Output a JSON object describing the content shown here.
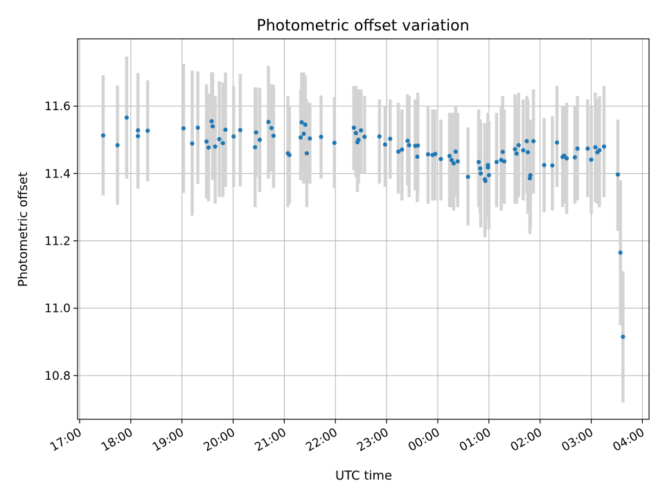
{
  "chart_data": {
    "type": "scatter",
    "title": "Photometric offset variation",
    "xlabel": "UTC time",
    "ylabel": "Photometric offset",
    "x_unit": "hours since 17:00 UTC",
    "xlim": [
      -0.04,
      11.13
    ],
    "ylim": [
      10.67,
      11.8
    ],
    "grid": true,
    "x_ticks": [
      {
        "value": 0,
        "label": "17:00"
      },
      {
        "value": 1,
        "label": "18:00"
      },
      {
        "value": 2,
        "label": "19:00"
      },
      {
        "value": 3,
        "label": "20:00"
      },
      {
        "value": 4,
        "label": "21:00"
      },
      {
        "value": 5,
        "label": "22:00"
      },
      {
        "value": 6,
        "label": "23:00"
      },
      {
        "value": 7,
        "label": "00:00"
      },
      {
        "value": 8,
        "label": "01:00"
      },
      {
        "value": 9,
        "label": "02:00"
      },
      {
        "value": 10,
        "label": "03:00"
      },
      {
        "value": 11,
        "label": "04:00"
      }
    ],
    "y_ticks": [
      {
        "value": 10.8,
        "label": "10.8"
      },
      {
        "value": 11.0,
        "label": "11.0"
      },
      {
        "value": 11.2,
        "label": "11.2"
      },
      {
        "value": 11.4,
        "label": "11.4"
      },
      {
        "value": 11.6,
        "label": "11.6"
      }
    ],
    "series": [
      {
        "name": "Photometric offset",
        "marker_color": "#1f77b4",
        "errorbar_color": "#d3d3d3",
        "points": [
          [
            0.46,
            11.513,
            11.335,
            11.692
          ],
          [
            0.74,
            11.484,
            11.307,
            11.661
          ],
          [
            0.92,
            11.566,
            11.385,
            11.747
          ],
          [
            1.14,
            11.528,
            11.358,
            11.698
          ],
          [
            1.14,
            11.511,
            11.355,
            11.668
          ],
          [
            1.33,
            11.527,
            11.377,
            11.677
          ],
          [
            2.03,
            11.534,
            11.342,
            11.726
          ],
          [
            2.2,
            11.489,
            11.275,
            11.706
          ],
          [
            2.31,
            11.536,
            11.369,
            11.703
          ],
          [
            2.48,
            11.495,
            11.325,
            11.665
          ],
          [
            2.52,
            11.477,
            11.317,
            11.637
          ],
          [
            2.58,
            11.555,
            11.476,
            11.701
          ],
          [
            2.6,
            11.54,
            11.38,
            11.7
          ],
          [
            2.65,
            11.48,
            11.31,
            11.63
          ],
          [
            2.73,
            11.502,
            11.33,
            11.674
          ],
          [
            2.8,
            11.49,
            11.33,
            11.67
          ],
          [
            2.85,
            11.53,
            11.36,
            11.7
          ],
          [
            3.01,
            11.51,
            11.36,
            11.66
          ],
          [
            3.14,
            11.529,
            11.362,
            11.696
          ],
          [
            3.43,
            11.478,
            11.3,
            11.656
          ],
          [
            3.45,
            11.522,
            11.39,
            11.655
          ],
          [
            3.52,
            11.5,
            11.345,
            11.655
          ],
          [
            3.69,
            11.553,
            11.385,
            11.72
          ],
          [
            3.75,
            11.535,
            11.405,
            11.665
          ],
          [
            3.79,
            11.512,
            11.357,
            11.663
          ],
          [
            4.07,
            11.46,
            11.3,
            11.63
          ],
          [
            4.1,
            11.455,
            11.31,
            11.6
          ],
          [
            4.32,
            11.507,
            11.38,
            11.65
          ],
          [
            4.34,
            11.552,
            11.4,
            11.7
          ],
          [
            4.38,
            11.518,
            11.37,
            11.7
          ],
          [
            4.41,
            11.545,
            11.4,
            11.69
          ],
          [
            4.44,
            11.46,
            11.3,
            11.62
          ],
          [
            4.5,
            11.504,
            11.37,
            11.61
          ],
          [
            4.72,
            11.509,
            11.385,
            11.632
          ],
          [
            4.98,
            11.491,
            11.356,
            11.627
          ],
          [
            5.36,
            11.536,
            11.41,
            11.66
          ],
          [
            5.4,
            11.52,
            11.39,
            11.66
          ],
          [
            5.45,
            11.5,
            11.37,
            11.65
          ],
          [
            5.43,
            11.493,
            11.345,
            11.641
          ],
          [
            5.5,
            11.528,
            11.4,
            11.65
          ],
          [
            5.57,
            11.509,
            11.4,
            11.63
          ],
          [
            5.86,
            11.51,
            11.37,
            11.62
          ],
          [
            5.97,
            11.486,
            11.36,
            11.6
          ],
          [
            6.07,
            11.503,
            11.385,
            11.62
          ],
          [
            6.23,
            11.465,
            11.34,
            11.61
          ],
          [
            6.3,
            11.471,
            11.32,
            11.59
          ],
          [
            6.41,
            11.497,
            11.365,
            11.635
          ],
          [
            6.44,
            11.484,
            11.33,
            11.63
          ],
          [
            6.56,
            11.482,
            11.35,
            11.62
          ],
          [
            6.61,
            11.483,
            11.34,
            11.64
          ],
          [
            6.6,
            11.45,
            11.315,
            11.58
          ],
          [
            6.81,
            11.457,
            11.31,
            11.6
          ],
          [
            6.9,
            11.455,
            11.32,
            11.59
          ],
          [
            6.95,
            11.458,
            11.32,
            11.59
          ],
          [
            7.06,
            11.443,
            11.32,
            11.56
          ],
          [
            7.23,
            11.452,
            11.3,
            11.58
          ],
          [
            7.27,
            11.44,
            11.3,
            11.58
          ],
          [
            7.31,
            11.43,
            11.29,
            11.58
          ],
          [
            7.35,
            11.465,
            11.33,
            11.6
          ],
          [
            7.39,
            11.436,
            11.3,
            11.58
          ],
          [
            7.59,
            11.39,
            11.245,
            11.537
          ],
          [
            7.8,
            11.434,
            11.3,
            11.59
          ],
          [
            7.83,
            11.415,
            11.28,
            11.56
          ],
          [
            7.84,
            11.4,
            11.24,
            11.55
          ],
          [
            7.92,
            11.383,
            11.21,
            11.55
          ],
          [
            7.93,
            11.378,
            11.23,
            11.53
          ],
          [
            7.98,
            11.425,
            11.29,
            11.58
          ],
          [
            7.98,
            11.418,
            11.27,
            11.57
          ],
          [
            8.0,
            11.395,
            11.235,
            11.555
          ],
          [
            8.15,
            11.434,
            11.3,
            11.58
          ],
          [
            8.24,
            11.44,
            11.29,
            11.6
          ],
          [
            8.27,
            11.464,
            11.32,
            11.63
          ],
          [
            8.3,
            11.436,
            11.31,
            11.59
          ],
          [
            8.51,
            11.472,
            11.31,
            11.635
          ],
          [
            8.54,
            11.459,
            11.31,
            11.61
          ],
          [
            8.58,
            11.484,
            11.33,
            11.64
          ],
          [
            8.67,
            11.469,
            11.32,
            11.62
          ],
          [
            8.74,
            11.496,
            11.34,
            11.63
          ],
          [
            8.76,
            11.463,
            11.28,
            11.62
          ],
          [
            8.8,
            11.386,
            11.22,
            11.55
          ],
          [
            8.81,
            11.395,
            11.24,
            11.56
          ],
          [
            8.87,
            11.496,
            11.34,
            11.65
          ],
          [
            9.08,
            11.425,
            11.285,
            11.565
          ],
          [
            9.24,
            11.424,
            11.29,
            11.57
          ],
          [
            9.33,
            11.492,
            11.36,
            11.66
          ],
          [
            9.44,
            11.449,
            11.3,
            11.6
          ],
          [
            9.47,
            11.453,
            11.31,
            11.6
          ],
          [
            9.52,
            11.445,
            11.28,
            11.61
          ],
          [
            9.68,
            11.448,
            11.31,
            11.6
          ],
          [
            9.73,
            11.474,
            11.32,
            11.63
          ],
          [
            9.93,
            11.474,
            11.33,
            11.62
          ],
          [
            10.0,
            11.441,
            11.28,
            11.6
          ],
          [
            10.08,
            11.478,
            11.315,
            11.64
          ],
          [
            10.12,
            11.463,
            11.31,
            11.62
          ],
          [
            10.16,
            11.469,
            11.3,
            11.63
          ],
          [
            10.25,
            11.48,
            11.33,
            11.66
          ],
          [
            10.52,
            11.397,
            11.23,
            11.56
          ],
          [
            10.57,
            11.165,
            10.95,
            11.38
          ],
          [
            10.62,
            10.915,
            10.72,
            11.11
          ]
        ]
      }
    ]
  }
}
